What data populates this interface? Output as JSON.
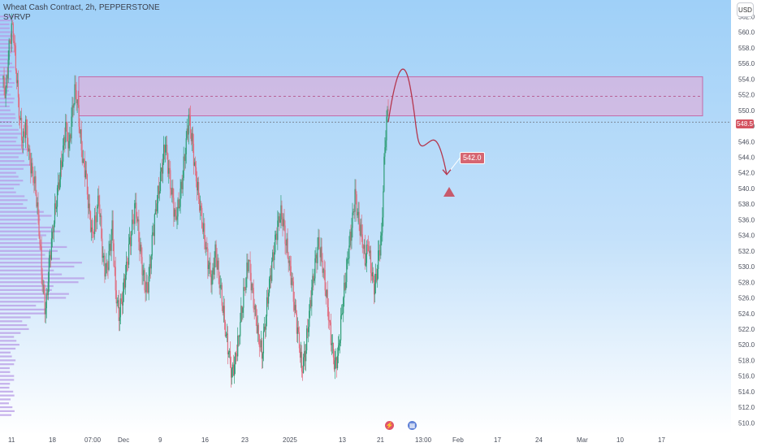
{
  "chart_data": {
    "type": "candlestick",
    "title": "Wheat Cash Contract, 2h, PEPPERSTONE",
    "indicator": "SVRVP",
    "currency": "USD",
    "y_ticks": [
      "510.0",
      "512.0",
      "514.0",
      "516.0",
      "518.0",
      "520.0",
      "522.0",
      "524.0",
      "526.0",
      "528.0",
      "530.0",
      "532.0",
      "534.0",
      "536.0",
      "538.0",
      "540.0",
      "542.0",
      "544.0",
      "546.0",
      "548.0",
      "550.0",
      "552.0",
      "554.0",
      "556.0",
      "558.0",
      "560.0",
      "562.0"
    ],
    "y_range": [
      509,
      563.5
    ],
    "x_ticks": [
      "11",
      "18",
      "07:00",
      "Dec",
      "9",
      "16",
      "23",
      "2025",
      "13",
      "21",
      "13:00",
      "Feb",
      "17",
      "24",
      "Mar",
      "10",
      "17"
    ],
    "current_price_label": "548.5",
    "current_price": 548.5,
    "resistance_zone": {
      "low": 549.3,
      "high": 554.3,
      "mid": 551.8
    },
    "target_label": "542.0",
    "target_price": 542.0,
    "price_path": [
      554,
      552,
      558,
      561,
      556,
      550,
      546,
      548,
      544,
      542,
      540,
      535,
      528,
      524,
      530,
      534,
      538,
      541,
      544,
      548,
      545,
      550,
      553,
      549,
      544,
      542,
      537,
      534,
      536,
      539,
      532,
      529,
      531,
      535,
      527,
      524,
      526,
      529,
      532,
      535,
      538,
      534,
      530,
      527,
      528,
      533,
      537,
      540,
      543,
      546,
      542,
      539,
      536,
      538,
      541,
      545,
      549,
      546,
      542,
      539,
      536,
      533,
      530,
      528,
      532,
      529,
      526,
      522,
      519,
      516,
      518,
      521,
      525,
      528,
      531,
      527,
      524,
      521,
      519,
      523,
      527,
      530,
      533,
      536,
      537,
      534,
      531,
      528,
      524,
      521,
      517,
      519,
      523,
      527,
      530,
      533,
      531,
      528,
      524,
      520,
      517,
      519,
      524,
      528,
      532,
      535,
      539,
      536,
      534,
      531,
      533,
      529,
      527,
      531,
      534,
      546,
      551
    ]
  }
}
